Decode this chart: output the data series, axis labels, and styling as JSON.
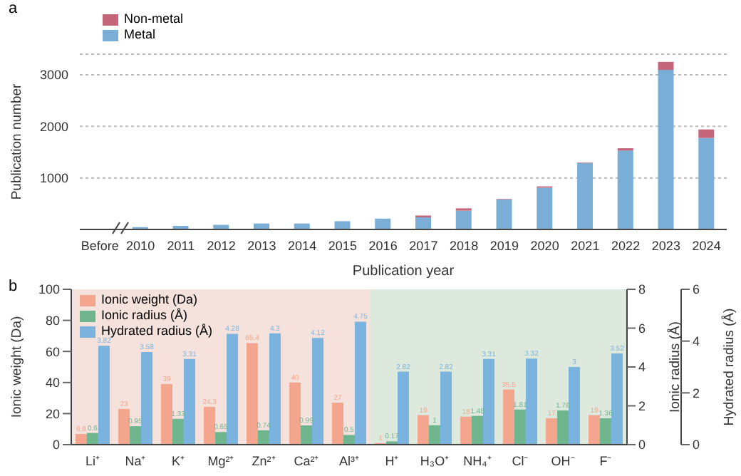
{
  "chart_data": [
    {
      "type": "bar",
      "title": "a",
      "xlabel": "Publication year",
      "ylabel": "Publication number",
      "stacked": true,
      "categories": [
        "Before",
        "2010",
        "2011",
        "2012",
        "2013",
        "2014",
        "2015",
        "2016",
        "2017",
        "2018",
        "2019",
        "2020",
        "2021",
        "2022",
        "2023",
        "2024"
      ],
      "series": [
        {
          "name": "Metal",
          "color": "#7aaed6",
          "values": [
            null,
            45,
            70,
            90,
            115,
            115,
            160,
            210,
            235,
            365,
            580,
            810,
            1290,
            1530,
            3095,
            1775
          ]
        },
        {
          "name": "Non-metal",
          "color": "#c5657a",
          "values": [
            null,
            0,
            0,
            0,
            0,
            0,
            0,
            0,
            35,
            45,
            10,
            25,
            10,
            45,
            155,
            165
          ]
        }
      ],
      "ylim": [
        0,
        3400
      ],
      "yticks": [
        1000,
        2000,
        3000
      ],
      "grid": "y",
      "legend": "top left"
    },
    {
      "type": "bar",
      "title": "b",
      "ylabel": "Ionic weight (Da)",
      "y2label": "Ionic radius (Å)",
      "y3label": "Hydrated radius (Å)",
      "categories": [
        "Li⁺",
        "Na⁺",
        "K⁺",
        "Mg²⁺",
        "Zn²⁺",
        "Ca²⁺",
        "Al³⁺",
        "H⁺",
        "H₃O⁺",
        "NH₄⁺",
        "Cl⁻",
        "OH⁻",
        "F⁻"
      ],
      "series": [
        {
          "name": "Ionic weight (Da)",
          "color": "#f4a58d",
          "values": [
            6.9,
            23,
            39,
            24.3,
            65.4,
            40,
            27,
            1,
            19,
            18,
            35.5,
            17,
            19
          ]
        },
        {
          "name": "Ionic radius (Å)",
          "color": "#6fb58e",
          "axis": "y2",
          "values": [
            0.6,
            0.95,
            1.33,
            0.65,
            0.74,
            0.99,
            0.5,
            0.17,
            1,
            1.48,
            1.81,
            1.76,
            1.36
          ]
        },
        {
          "name": "Hydrated radius (Å)",
          "color": "#79b3de",
          "axis": "y3",
          "values": [
            3.82,
            3.58,
            3.31,
            4.28,
            4.3,
            4.12,
            4.75,
            2.82,
            2.82,
            3.31,
            3.32,
            3,
            3.52
          ]
        }
      ],
      "ylim": [
        0,
        100
      ],
      "yticks": [
        0,
        20,
        40,
        60,
        80,
        100
      ],
      "y2lim": [
        0,
        8
      ],
      "y2ticks": [
        0,
        2,
        4,
        6,
        8
      ],
      "y3lim": [
        0,
        6
      ],
      "y3ticks": [
        0,
        2,
        4,
        6
      ],
      "bands": [
        {
          "axis": "x",
          "from": "Li⁺",
          "to": "Al³⁺",
          "color": "#f6e2dd"
        },
        {
          "axis": "x",
          "from": "H⁺",
          "to": "F⁻",
          "color": "#dde9dc"
        }
      ],
      "data_labels": true,
      "legend": "top left"
    }
  ]
}
